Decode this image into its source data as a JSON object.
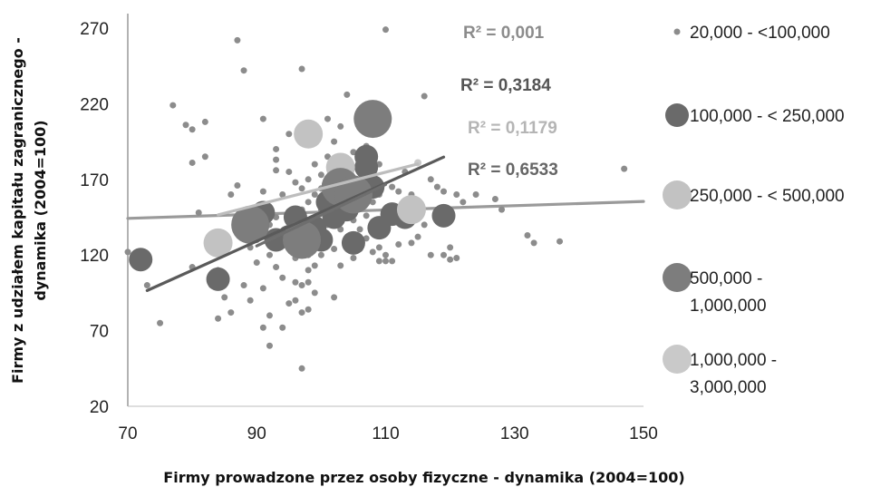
{
  "chart_data": {
    "type": "scatter",
    "title": "",
    "xlabel": "Firmy prowadzone przez osoby fizyczne - dynamika (2004=100)",
    "ylabel_lines": [
      "Firmy z udziałem kapitału zagranicznego -",
      "dynamika (2004=100)"
    ],
    "xlim": [
      70,
      150
    ],
    "ylim": [
      20,
      270
    ],
    "xticks": [
      70,
      90,
      110,
      130,
      150
    ],
    "yticks": [
      20,
      70,
      120,
      170,
      220,
      270
    ],
    "grid": false,
    "legend_position": "right",
    "series": [
      {
        "name": "20,000 - <100,000",
        "legend_lines": [
          "20,000 - <100,000"
        ],
        "color": "#8c8c8c",
        "marker_size": 1,
        "line_color": "#9a9a9a",
        "fit": {
          "slope": 0.14,
          "intercept": 134.4,
          "x_range": [
            70,
            150
          ]
        },
        "r2_label": "R² = 0,001",
        "r2_color": "#8c8c8c",
        "points": [
          [
            70,
            122
          ],
          [
            72,
            118
          ],
          [
            73,
            100
          ],
          [
            75,
            75
          ],
          [
            77,
            219
          ],
          [
            79,
            206
          ],
          [
            80,
            112
          ],
          [
            80,
            203
          ],
          [
            80,
            181
          ],
          [
            82,
            208
          ],
          [
            82,
            185
          ],
          [
            81,
            148
          ],
          [
            83,
            130
          ],
          [
            83,
            100
          ],
          [
            84,
            110
          ],
          [
            84,
            78
          ],
          [
            85,
            122
          ],
          [
            85,
            92
          ],
          [
            86,
            82
          ],
          [
            86,
            160
          ],
          [
            87,
            166
          ],
          [
            87,
            262
          ],
          [
            88,
            242
          ],
          [
            88,
            132
          ],
          [
            88,
            100
          ],
          [
            89,
            125
          ],
          [
            89,
            90
          ],
          [
            90,
            150
          ],
          [
            90,
            130
          ],
          [
            90,
            115
          ],
          [
            91,
            210
          ],
          [
            91,
            162
          ],
          [
            91,
            98
          ],
          [
            91,
            72
          ],
          [
            92,
            60
          ],
          [
            92,
            80
          ],
          [
            92,
            120
          ],
          [
            92,
            140
          ],
          [
            93,
            190
          ],
          [
            93,
            176
          ],
          [
            93,
            183
          ],
          [
            93,
            145
          ],
          [
            93,
            112
          ],
          [
            94,
            160
          ],
          [
            94,
            105
          ],
          [
            94,
            72
          ],
          [
            95,
            200
          ],
          [
            95,
            175
          ],
          [
            95,
            132
          ],
          [
            95,
            88
          ],
          [
            96,
            168
          ],
          [
            96,
            147
          ],
          [
            96,
            118
          ],
          [
            96,
            102
          ],
          [
            96,
            90
          ],
          [
            97,
            243
          ],
          [
            97,
            164
          ],
          [
            97,
            150
          ],
          [
            97,
            136
          ],
          [
            97,
            100
          ],
          [
            97,
            82
          ],
          [
            97,
            45
          ],
          [
            98,
            170
          ],
          [
            98,
            155
          ],
          [
            98,
            120
          ],
          [
            98,
            110
          ],
          [
            98,
            102
          ],
          [
            98,
            84
          ],
          [
            99,
            200
          ],
          [
            99,
            180
          ],
          [
            99,
            160
          ],
          [
            99,
            137
          ],
          [
            99,
            113
          ],
          [
            99,
            95
          ],
          [
            100,
            173
          ],
          [
            100,
            164
          ],
          [
            100,
            150
          ],
          [
            100,
            120
          ],
          [
            101,
            210
          ],
          [
            101,
            185
          ],
          [
            101,
            140
          ],
          [
            101,
            128
          ],
          [
            102,
            195
          ],
          [
            102,
            160
          ],
          [
            102,
            144
          ],
          [
            102,
            124
          ],
          [
            102,
            92
          ],
          [
            103,
            205
          ],
          [
            103,
            150
          ],
          [
            103,
            137
          ],
          [
            103,
            113
          ],
          [
            104,
            226
          ],
          [
            104,
            150
          ],
          [
            104,
            130
          ],
          [
            105,
            188
          ],
          [
            105,
            160
          ],
          [
            105,
            143
          ],
          [
            105,
            118
          ],
          [
            106,
            170
          ],
          [
            106,
            155
          ],
          [
            106,
            137
          ],
          [
            106,
            124
          ],
          [
            107,
            192
          ],
          [
            107,
            160
          ],
          [
            107,
            146
          ],
          [
            107,
            131
          ],
          [
            108,
            182
          ],
          [
            108,
            155
          ],
          [
            108,
            142
          ],
          [
            108,
            122
          ],
          [
            109,
            180
          ],
          [
            109,
            160
          ],
          [
            109,
            125
          ],
          [
            109,
            116
          ],
          [
            110,
            269
          ],
          [
            110,
            140
          ],
          [
            110,
            120
          ],
          [
            110,
            116
          ],
          [
            111,
            165
          ],
          [
            111,
            145
          ],
          [
            111,
            116
          ],
          [
            112,
            162
          ],
          [
            112,
            147
          ],
          [
            112,
            127
          ],
          [
            113,
            175
          ],
          [
            113,
            150
          ],
          [
            113,
            140
          ],
          [
            114,
            160
          ],
          [
            114,
            128
          ],
          [
            115,
            155
          ],
          [
            115,
            132
          ],
          [
            116,
            225
          ],
          [
            116,
            140
          ],
          [
            117,
            170
          ],
          [
            117,
            120
          ],
          [
            118,
            165
          ],
          [
            119,
            162
          ],
          [
            119,
            120
          ],
          [
            120,
            117
          ],
          [
            120,
            125
          ],
          [
            121,
            160
          ],
          [
            121,
            118
          ],
          [
            122,
            155
          ],
          [
            124,
            160
          ],
          [
            127,
            157
          ],
          [
            128,
            150
          ],
          [
            132,
            133
          ],
          [
            133,
            128
          ],
          [
            137,
            129
          ],
          [
            147,
            177
          ]
        ]
      },
      {
        "name": "100,000 - < 250,000",
        "legend_lines": [
          "100,000 - < 250,000"
        ],
        "color": "#6a6a6a",
        "marker_size": 3,
        "line_color": "#5a5a5a",
        "fit": {
          "slope": 1.918,
          "intercept": -43.5,
          "x_range": [
            73,
            119
          ]
        },
        "r2_label": "R² = 0,3184",
        "r2_color": "#555555",
        "points": [
          [
            72,
            117
          ],
          [
            84,
            104
          ],
          [
            91,
            148
          ],
          [
            93,
            130
          ],
          [
            95,
            132
          ],
          [
            96,
            145
          ],
          [
            98,
            128
          ],
          [
            99,
            138
          ],
          [
            100,
            130
          ],
          [
            101,
            155
          ],
          [
            102,
            145
          ],
          [
            104,
            150
          ],
          [
            105,
            128
          ],
          [
            107,
            185
          ],
          [
            107,
            178
          ],
          [
            108,
            165
          ],
          [
            109,
            138
          ],
          [
            111,
            147
          ],
          [
            113,
            145
          ],
          [
            119,
            146
          ]
        ]
      },
      {
        "name": "250,000 - < 500,000",
        "legend_lines": [
          "250,000 - < 500,000"
        ],
        "color": "#c2c2c2",
        "marker_size": 4,
        "line_color": "#bdbdbd",
        "fit": {
          "slope": 1.084,
          "intercept": 55.5,
          "x_range": [
            84,
            115
          ]
        },
        "r2_label": "R² = 0,1179",
        "r2_color": "#b5b5b5",
        "points": [
          [
            84,
            128
          ],
          [
            98,
            200
          ],
          [
            103,
            178
          ],
          [
            114,
            150
          ]
        ]
      },
      {
        "name": "500,000 - < 1,000,000",
        "legend_lines": [
          "500,000 -",
          "1,000,000"
        ],
        "color": "#7d7d7d",
        "marker_size": 6,
        "line_color": "#6e6e6e",
        "fit": {
          "slope": 2.03,
          "intercept": -56.7,
          "x_range": [
            90,
            110
          ]
        },
        "r2_label": "R² = 0,6533",
        "r2_color": "#666666",
        "points": [
          [
            89,
            140
          ],
          [
            97,
            130
          ],
          [
            103,
            165
          ],
          [
            105,
            160
          ],
          [
            108,
            210
          ]
        ]
      },
      {
        "name": "1,000,000 - < 3,000,000",
        "legend_lines": [
          "1,000,000 -",
          "3,000,000"
        ],
        "color": "#c9c9c9",
        "marker_size": 7,
        "line_color": null,
        "fit": null,
        "r2_label": null,
        "r2_color": null,
        "points": [
          [
            115,
            181
          ]
        ]
      }
    ]
  }
}
